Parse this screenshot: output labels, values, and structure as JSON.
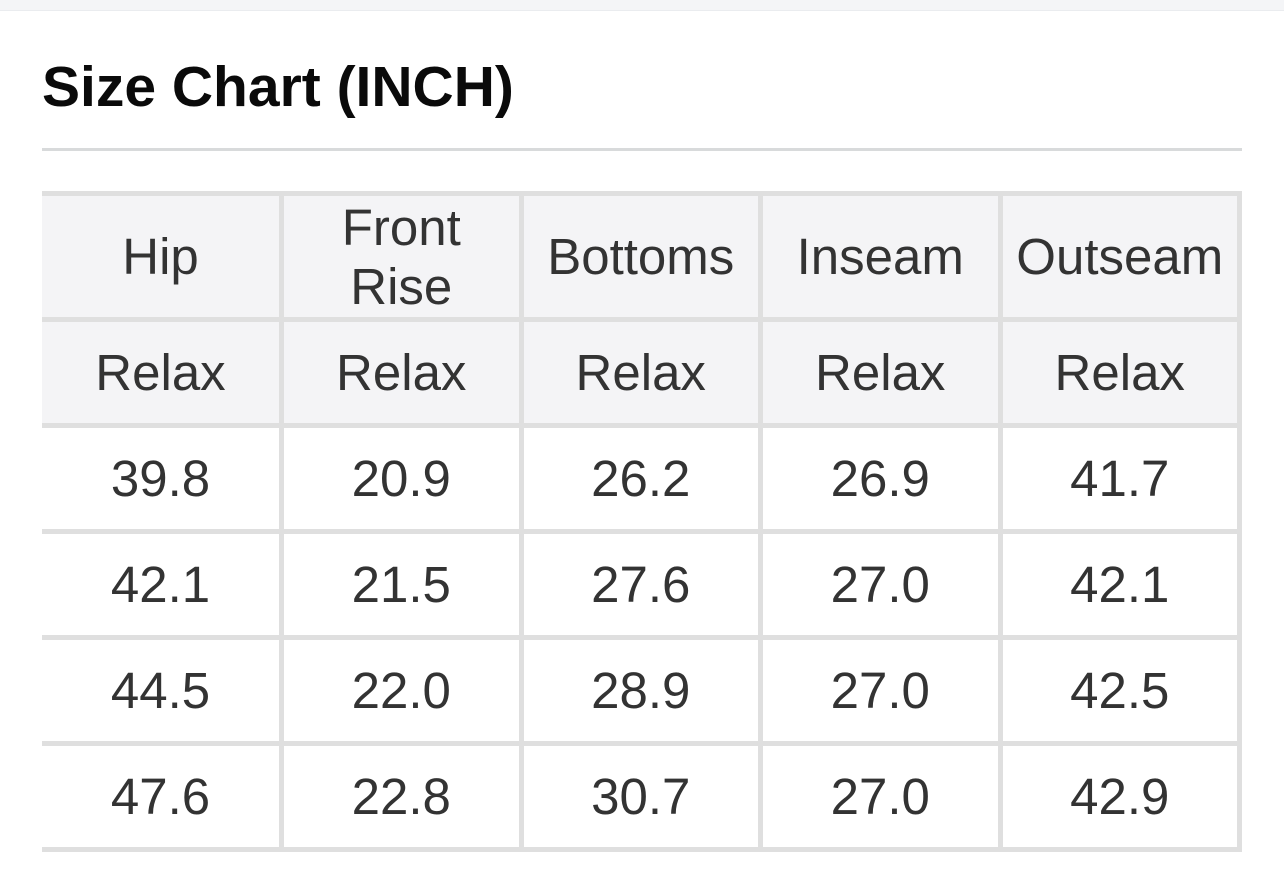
{
  "section": {
    "title": "Size Chart (INCH)"
  },
  "table": {
    "columns": [
      "Hip",
      "Front Rise",
      "Bottoms",
      "Inseam",
      "Outseam"
    ],
    "fit_row": [
      "Relax",
      "Relax",
      "Relax",
      "Relax",
      "Relax"
    ],
    "rows": [
      [
        "39.8",
        "20.9",
        "26.2",
        "26.9",
        "41.7"
      ],
      [
        "42.1",
        "21.5",
        "27.6",
        "27.0",
        "42.1"
      ],
      [
        "44.5",
        "22.0",
        "28.9",
        "27.0",
        "42.5"
      ],
      [
        "47.6",
        "22.8",
        "30.7",
        "27.0",
        "42.9"
      ]
    ]
  },
  "theme": {
    "page_bg": "#ffffff",
    "top_strip_bg": "#f4f5f7",
    "top_strip_edge": "#eaecef",
    "title_color": "#0a0a0a",
    "divider": "#d8dadb",
    "border": "#dfdfdf",
    "header_bg": "#f4f4f6",
    "cell_bg": "#ffffff",
    "text": "#333333"
  }
}
